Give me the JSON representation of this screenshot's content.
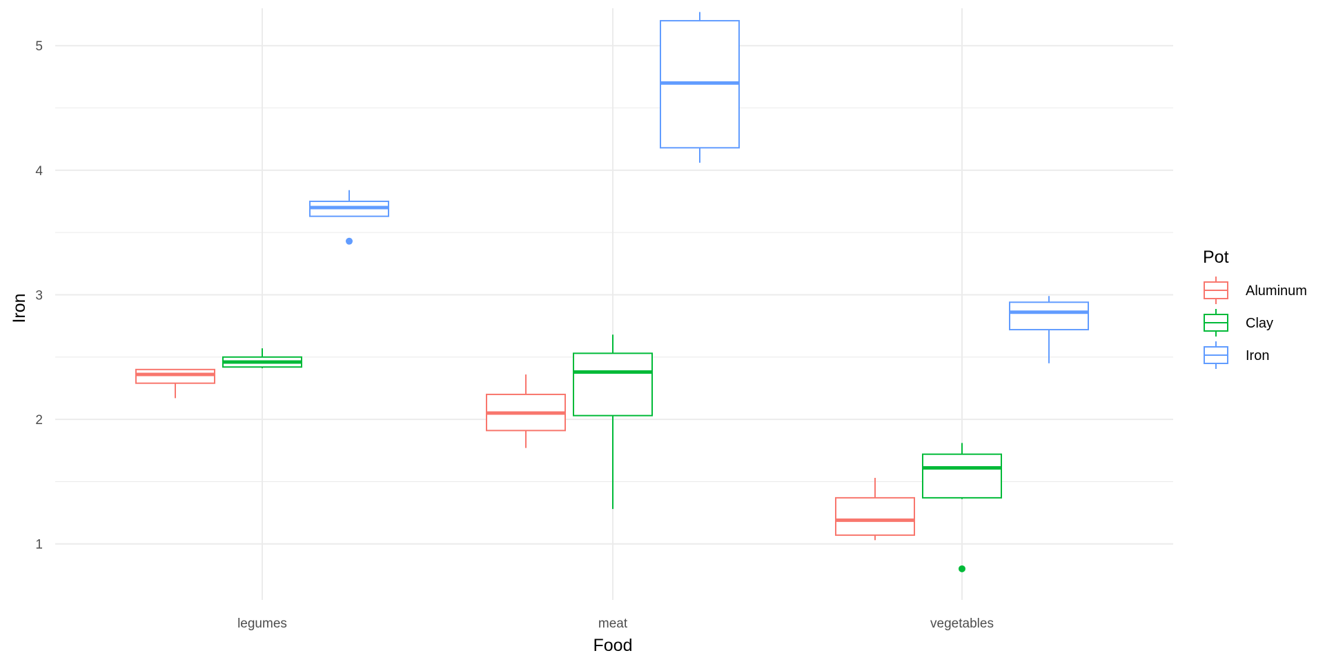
{
  "chart_data": {
    "type": "boxplot",
    "title": "",
    "xlabel": "Food",
    "ylabel": "Iron",
    "categories": [
      "legumes",
      "meat",
      "vegetables"
    ],
    "y_ticks": [
      1,
      2,
      3,
      4,
      5
    ],
    "ylim": [
      0.55,
      5.3
    ],
    "grid": true,
    "legend_position": "right",
    "legend": {
      "title": "Pot",
      "entries": [
        "Aluminum",
        "Clay",
        "Iron"
      ]
    },
    "colors": {
      "Aluminum": "#F8766D",
      "Clay": "#00BA38",
      "Iron": "#619CFF",
      "grid": "#ebebeb"
    },
    "series": [
      {
        "name": "Aluminum",
        "boxes": [
          {
            "category": "legumes",
            "whisker_low": 2.17,
            "q1": 2.29,
            "median": 2.36,
            "q3": 2.4,
            "whisker_high": 2.4,
            "outliers": []
          },
          {
            "category": "meat",
            "whisker_low": 1.77,
            "q1": 1.91,
            "median": 2.05,
            "q3": 2.2,
            "whisker_high": 2.36,
            "outliers": []
          },
          {
            "category": "vegetables",
            "whisker_low": 1.03,
            "q1": 1.07,
            "median": 1.19,
            "q3": 1.37,
            "whisker_high": 1.53,
            "outliers": []
          }
        ]
      },
      {
        "name": "Clay",
        "boxes": [
          {
            "category": "legumes",
            "whisker_low": 2.41,
            "q1": 2.42,
            "median": 2.46,
            "q3": 2.5,
            "whisker_high": 2.57,
            "outliers": []
          },
          {
            "category": "meat",
            "whisker_low": 1.28,
            "q1": 2.03,
            "median": 2.38,
            "q3": 2.53,
            "whisker_high": 2.68,
            "outliers": []
          },
          {
            "category": "vegetables",
            "whisker_low": 1.36,
            "q1": 1.37,
            "median": 1.61,
            "q3": 1.72,
            "whisker_high": 1.81,
            "outliers": [
              0.8
            ]
          }
        ]
      },
      {
        "name": "Iron",
        "boxes": [
          {
            "category": "legumes",
            "whisker_low": 3.63,
            "q1": 3.63,
            "median": 3.7,
            "q3": 3.75,
            "whisker_high": 3.84,
            "outliers": [
              3.43
            ]
          },
          {
            "category": "meat",
            "whisker_low": 4.06,
            "q1": 4.18,
            "median": 4.7,
            "q3": 5.2,
            "whisker_high": 5.27,
            "outliers": []
          },
          {
            "category": "vegetables",
            "whisker_low": 2.45,
            "q1": 2.72,
            "median": 2.86,
            "q3": 2.94,
            "whisker_high": 2.99,
            "outliers": []
          }
        ]
      }
    ]
  }
}
